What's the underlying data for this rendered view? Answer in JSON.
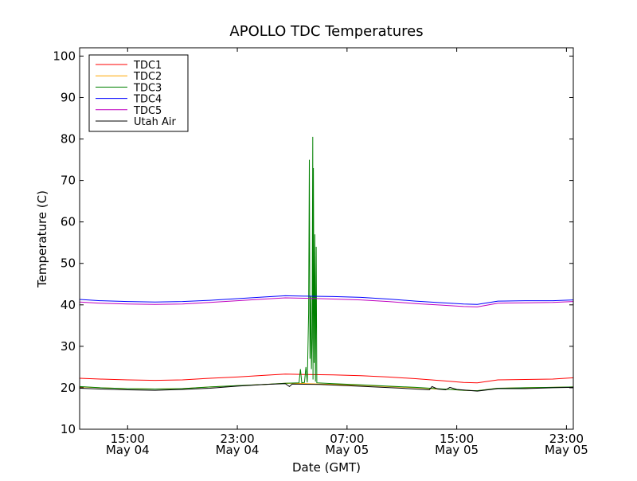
{
  "chart_data": {
    "type": "line",
    "title": "APOLLO TDC Temperatures",
    "xlabel": "Date (GMT)",
    "ylabel": "Temperature (C)",
    "xlim_hours": [
      11.5,
      47.5
    ],
    "ylim": [
      10,
      102
    ],
    "x_unit": "hours since 2010-05-04 00:00 GMT",
    "grid": false,
    "legend_position": "top-left",
    "x_ticks": [
      {
        "x": 15,
        "time": "15:00",
        "date": "May 04"
      },
      {
        "x": 23,
        "time": "23:00",
        "date": "May 04"
      },
      {
        "x": 31,
        "time": "07:00",
        "date": "May 05"
      },
      {
        "x": 39,
        "time": "15:00",
        "date": "May 05"
      },
      {
        "x": 47,
        "time": "23:00",
        "date": "May 05"
      }
    ],
    "y_ticks": [
      10,
      20,
      30,
      40,
      50,
      60,
      70,
      80,
      90,
      100
    ],
    "series": [
      {
        "name": "TDC1",
        "color": "#ff0000",
        "points": [
          [
            11.5,
            22.3
          ],
          [
            13,
            22.1
          ],
          [
            15,
            21.9
          ],
          [
            17,
            21.8
          ],
          [
            19,
            21.9
          ],
          [
            21,
            22.3
          ],
          [
            23,
            22.6
          ],
          [
            25,
            23.0
          ],
          [
            26.5,
            23.3
          ],
          [
            28,
            23.2
          ],
          [
            30,
            23.1
          ],
          [
            32,
            22.9
          ],
          [
            34,
            22.6
          ],
          [
            36,
            22.2
          ],
          [
            38,
            21.7
          ],
          [
            39.5,
            21.3
          ],
          [
            40.5,
            21.2
          ],
          [
            42,
            21.9
          ],
          [
            44,
            22.0
          ],
          [
            46,
            22.1
          ],
          [
            47.5,
            22.4
          ]
        ]
      },
      {
        "name": "TDC2",
        "color": "#ffa500",
        "points": [
          [
            11.5,
            20.2
          ],
          [
            13,
            20.0
          ],
          [
            15,
            19.8
          ],
          [
            17,
            19.7
          ],
          [
            19,
            19.8
          ],
          [
            21,
            20.2
          ],
          [
            23,
            20.5
          ],
          [
            25,
            20.8
          ],
          [
            26.5,
            21.1
          ],
          [
            28,
            21.0
          ],
          [
            30,
            20.8
          ],
          [
            32,
            20.6
          ],
          [
            34,
            20.3
          ],
          [
            36,
            20.0
          ],
          [
            37.5,
            19.7
          ],
          [
            38.5,
            19.6
          ],
          [
            39.5,
            19.4
          ],
          [
            40.5,
            19.3
          ],
          [
            42,
            19.9
          ],
          [
            44,
            20.0
          ],
          [
            46,
            20.1
          ],
          [
            47.5,
            20.2
          ]
        ]
      },
      {
        "name": "TDC3",
        "color": "#008000",
        "points": [
          [
            11.5,
            20.3
          ],
          [
            13,
            20.0
          ],
          [
            15,
            19.8
          ],
          [
            17,
            19.7
          ],
          [
            19,
            19.8
          ],
          [
            21,
            20.2
          ],
          [
            23,
            20.5
          ],
          [
            25,
            20.8
          ],
          [
            26.5,
            21.1
          ],
          [
            27.5,
            21.2
          ],
          [
            27.6,
            24.5
          ],
          [
            27.7,
            21.2
          ],
          [
            27.9,
            21.3
          ],
          [
            28.0,
            25.0
          ],
          [
            28.1,
            21.3
          ],
          [
            28.2,
            38.0
          ],
          [
            28.25,
            75.0
          ],
          [
            28.3,
            27.0
          ],
          [
            28.35,
            42.0
          ],
          [
            28.4,
            24.5
          ],
          [
            28.45,
            32.0
          ],
          [
            28.5,
            80.5
          ],
          [
            28.52,
            22.0
          ],
          [
            28.55,
            73.0
          ],
          [
            28.6,
            26.0
          ],
          [
            28.65,
            57.0
          ],
          [
            28.7,
            21.5
          ],
          [
            28.75,
            54.0
          ],
          [
            28.8,
            21.2
          ],
          [
            30,
            21.0
          ],
          [
            32,
            20.7
          ],
          [
            34,
            20.4
          ],
          [
            36,
            20.1
          ],
          [
            37.5,
            19.8
          ],
          [
            38.5,
            19.6
          ],
          [
            39.5,
            19.4
          ],
          [
            40.5,
            19.3
          ],
          [
            42,
            19.9
          ],
          [
            44,
            20.0
          ],
          [
            46,
            20.1
          ],
          [
            47.5,
            20.2
          ]
        ]
      },
      {
        "name": "TDC4",
        "color": "#0000ff",
        "points": [
          [
            11.5,
            41.3
          ],
          [
            13,
            41.0
          ],
          [
            15,
            40.8
          ],
          [
            17,
            40.7
          ],
          [
            19,
            40.8
          ],
          [
            21,
            41.1
          ],
          [
            23,
            41.5
          ],
          [
            25,
            41.9
          ],
          [
            26.5,
            42.2
          ],
          [
            28,
            42.1
          ],
          [
            30,
            42.0
          ],
          [
            32,
            41.8
          ],
          [
            34,
            41.4
          ],
          [
            36,
            40.9
          ],
          [
            38,
            40.5
          ],
          [
            39.5,
            40.2
          ],
          [
            40.5,
            40.1
          ],
          [
            42,
            40.9
          ],
          [
            44,
            41.0
          ],
          [
            46,
            41.0
          ],
          [
            47.5,
            41.2
          ]
        ]
      },
      {
        "name": "TDC5",
        "color": "#bf00bf",
        "points": [
          [
            11.5,
            40.7
          ],
          [
            13,
            40.4
          ],
          [
            15,
            40.2
          ],
          [
            17,
            40.1
          ],
          [
            19,
            40.2
          ],
          [
            21,
            40.6
          ],
          [
            23,
            41.0
          ],
          [
            25,
            41.4
          ],
          [
            26.5,
            41.7
          ],
          [
            28,
            41.6
          ],
          [
            30,
            41.4
          ],
          [
            32,
            41.2
          ],
          [
            34,
            40.8
          ],
          [
            36,
            40.3
          ],
          [
            38,
            39.9
          ],
          [
            39.5,
            39.6
          ],
          [
            40.5,
            39.5
          ],
          [
            42,
            40.4
          ],
          [
            44,
            40.5
          ],
          [
            46,
            40.6
          ],
          [
            47.5,
            40.8
          ]
        ]
      },
      {
        "name": "Utah Air",
        "color": "#000000",
        "points": [
          [
            11.5,
            19.9
          ],
          [
            13,
            19.7
          ],
          [
            15,
            19.5
          ],
          [
            17,
            19.4
          ],
          [
            19,
            19.6
          ],
          [
            21,
            19.9
          ],
          [
            23,
            20.4
          ],
          [
            25,
            20.8
          ],
          [
            26.5,
            21.0
          ],
          [
            26.8,
            20.3
          ],
          [
            27,
            20.9
          ],
          [
            29,
            20.8
          ],
          [
            31,
            20.5
          ],
          [
            33,
            20.2
          ],
          [
            35,
            19.9
          ],
          [
            37,
            19.5
          ],
          [
            37.2,
            20.3
          ],
          [
            37.6,
            19.7
          ],
          [
            38.2,
            19.5
          ],
          [
            38.5,
            20.1
          ],
          [
            39,
            19.6
          ],
          [
            40.5,
            19.2
          ],
          [
            42,
            19.8
          ],
          [
            44,
            19.8
          ],
          [
            46,
            20.0
          ],
          [
            47.5,
            20.1
          ]
        ]
      }
    ]
  }
}
